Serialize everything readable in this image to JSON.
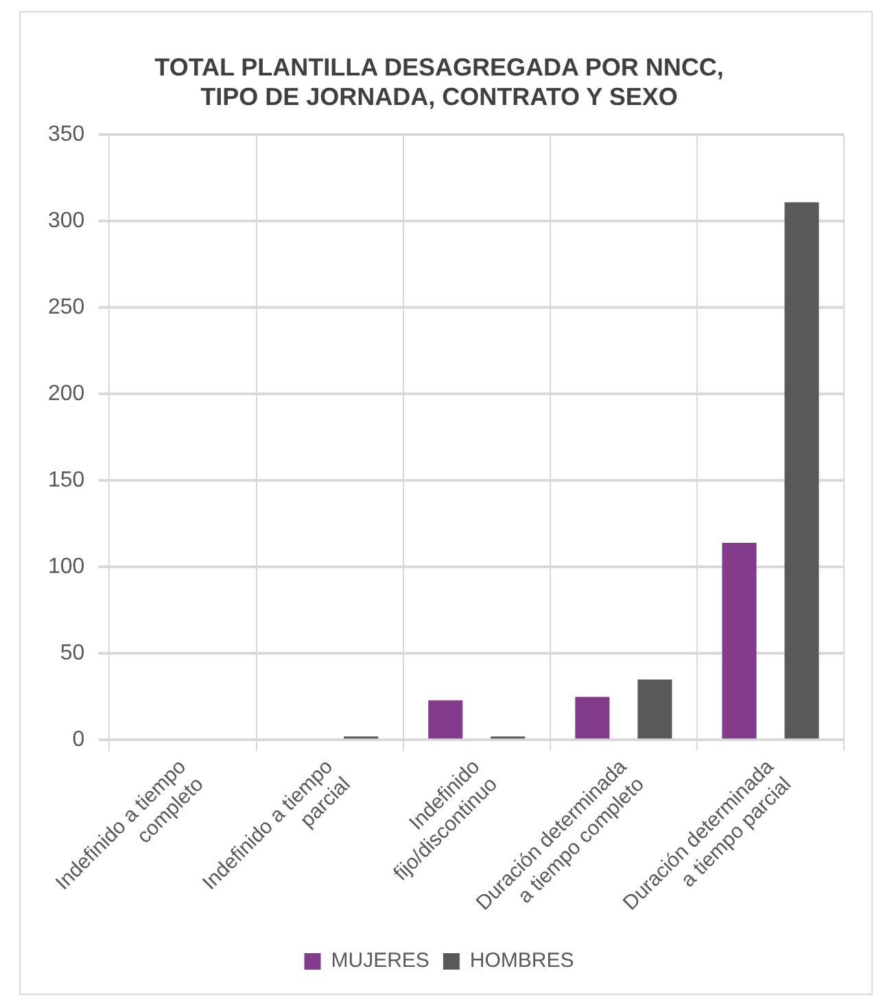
{
  "chart_data": {
    "type": "bar",
    "title": "TOTAL PLANTILLA DESAGREGADA POR NNCC, TIPO DE JORNADA, CONTRATO Y SEXO",
    "categories": [
      "Indefinido a tiempo completo",
      "Indefinido a tiempo parcial",
      "Indefinido fijo/discontinuo",
      "Duración determinada a tiempo completo",
      "Duración determinada a tiempo parcial"
    ],
    "series": [
      {
        "name": "MUJERES",
        "color": "#833c8b",
        "values": [
          0,
          0,
          23,
          25,
          114
        ]
      },
      {
        "name": "HOMBRES",
        "color": "#595959",
        "values": [
          0,
          2,
          2,
          35,
          311
        ]
      }
    ],
    "ylim": [
      0,
      350
    ],
    "yticks": [
      0,
      50,
      100,
      150,
      200,
      250,
      300,
      350
    ],
    "grid": true,
    "legend": "bottom"
  }
}
